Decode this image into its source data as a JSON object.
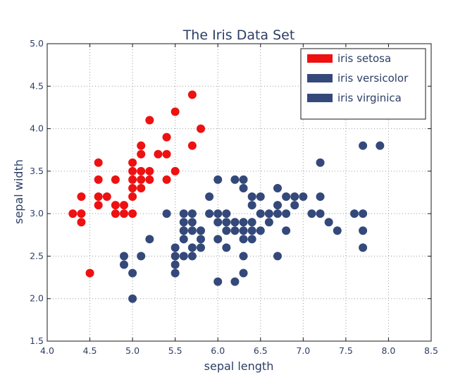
{
  "chart_data": {
    "type": "scatter",
    "title": "The Iris Data Set",
    "xlabel": "sepal length",
    "ylabel": "sepal width",
    "xlim": [
      4.0,
      8.5
    ],
    "ylim": [
      1.5,
      5.0
    ],
    "xticks": [
      "4.0",
      "4.5",
      "5.0",
      "5.5",
      "6.0",
      "6.5",
      "7.0",
      "7.5",
      "8.0",
      "8.5"
    ],
    "yticks": [
      "1.5",
      "2.0",
      "2.5",
      "3.0",
      "3.5",
      "4.0",
      "4.5",
      "5.0"
    ],
    "grid": true,
    "legend_position": "top-right",
    "series": [
      {
        "name": "iris setosa",
        "color": "#ee1111",
        "points": [
          [
            4.3,
            3.0
          ],
          [
            4.4,
            2.9
          ],
          [
            4.4,
            3.0
          ],
          [
            4.4,
            3.2
          ],
          [
            4.5,
            2.3
          ],
          [
            4.6,
            3.1
          ],
          [
            4.6,
            3.2
          ],
          [
            4.6,
            3.4
          ],
          [
            4.6,
            3.6
          ],
          [
            4.7,
            3.2
          ],
          [
            4.8,
            3.0
          ],
          [
            4.8,
            3.1
          ],
          [
            4.8,
            3.4
          ],
          [
            4.9,
            3.0
          ],
          [
            4.9,
            3.1
          ],
          [
            5.0,
            3.0
          ],
          [
            5.0,
            3.2
          ],
          [
            5.0,
            3.3
          ],
          [
            5.0,
            3.4
          ],
          [
            5.0,
            3.5
          ],
          [
            5.0,
            3.6
          ],
          [
            5.1,
            3.3
          ],
          [
            5.1,
            3.4
          ],
          [
            5.1,
            3.5
          ],
          [
            5.1,
            3.7
          ],
          [
            5.1,
            3.8
          ],
          [
            5.2,
            3.4
          ],
          [
            5.2,
            3.5
          ],
          [
            5.2,
            4.1
          ],
          [
            5.3,
            3.7
          ],
          [
            5.4,
            3.4
          ],
          [
            5.4,
            3.7
          ],
          [
            5.4,
            3.9
          ],
          [
            5.5,
            3.5
          ],
          [
            5.5,
            4.2
          ],
          [
            5.7,
            3.8
          ],
          [
            5.7,
            4.4
          ],
          [
            5.8,
            4.0
          ]
        ]
      },
      {
        "name": "iris versicolor",
        "color": "#34497a",
        "points": [
          [
            4.9,
            2.4
          ],
          [
            4.9,
            2.5
          ],
          [
            5.0,
            2.0
          ],
          [
            5.0,
            2.3
          ],
          [
            5.1,
            2.5
          ],
          [
            5.2,
            2.7
          ],
          [
            5.4,
            3.0
          ],
          [
            5.5,
            2.3
          ],
          [
            5.5,
            2.4
          ],
          [
            5.5,
            2.5
          ],
          [
            5.5,
            2.6
          ],
          [
            5.6,
            2.5
          ],
          [
            5.6,
            2.7
          ],
          [
            5.6,
            2.8
          ],
          [
            5.6,
            2.9
          ],
          [
            5.6,
            3.0
          ],
          [
            5.7,
            2.6
          ],
          [
            5.7,
            2.8
          ],
          [
            5.7,
            2.9
          ],
          [
            5.7,
            3.0
          ],
          [
            5.8,
            2.6
          ],
          [
            5.8,
            2.7
          ],
          [
            5.9,
            3.0
          ],
          [
            5.9,
            3.2
          ],
          [
            6.0,
            2.2
          ],
          [
            6.0,
            2.7
          ],
          [
            6.0,
            2.9
          ],
          [
            6.0,
            3.4
          ],
          [
            6.1,
            2.8
          ],
          [
            6.1,
            2.9
          ],
          [
            6.1,
            3.0
          ],
          [
            6.2,
            2.2
          ],
          [
            6.2,
            2.9
          ],
          [
            6.3,
            2.3
          ],
          [
            6.3,
            2.5
          ],
          [
            6.3,
            3.3
          ],
          [
            6.4,
            2.9
          ],
          [
            6.4,
            3.2
          ],
          [
            6.5,
            2.8
          ],
          [
            6.6,
            2.9
          ],
          [
            6.6,
            3.0
          ],
          [
            6.7,
            3.0
          ],
          [
            6.7,
            3.1
          ],
          [
            6.8,
            2.8
          ],
          [
            6.9,
            3.1
          ],
          [
            7.0,
            3.2
          ]
        ]
      },
      {
        "name": "iris virginica",
        "color": "#34497a",
        "points": [
          [
            5.6,
            2.8
          ],
          [
            5.7,
            2.5
          ],
          [
            5.8,
            2.8
          ],
          [
            6.0,
            3.0
          ],
          [
            6.1,
            2.6
          ],
          [
            6.2,
            2.8
          ],
          [
            6.2,
            3.4
          ],
          [
            6.3,
            2.7
          ],
          [
            6.3,
            2.8
          ],
          [
            6.3,
            2.9
          ],
          [
            6.3,
            3.4
          ],
          [
            6.4,
            2.7
          ],
          [
            6.4,
            2.8
          ],
          [
            6.4,
            3.1
          ],
          [
            6.5,
            3.0
          ],
          [
            6.5,
            3.2
          ],
          [
            6.7,
            2.5
          ],
          [
            6.7,
            3.3
          ],
          [
            6.8,
            3.0
          ],
          [
            6.8,
            3.2
          ],
          [
            6.9,
            3.2
          ],
          [
            7.1,
            3.0
          ],
          [
            7.2,
            3.0
          ],
          [
            7.2,
            3.2
          ],
          [
            7.2,
            3.6
          ],
          [
            7.3,
            2.9
          ],
          [
            7.4,
            2.8
          ],
          [
            7.6,
            3.0
          ],
          [
            7.7,
            2.6
          ],
          [
            7.7,
            2.8
          ],
          [
            7.7,
            3.0
          ],
          [
            7.7,
            3.8
          ],
          [
            7.9,
            3.8
          ]
        ]
      }
    ]
  }
}
